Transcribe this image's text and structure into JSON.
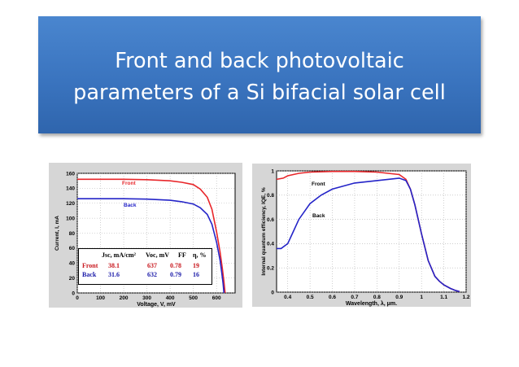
{
  "slide": {
    "title_line1": "Front and back photovoltaic",
    "title_line2": "parameters of a Si bifacial solar cell"
  },
  "colors": {
    "front": "#e8262a",
    "back": "#2424c8",
    "title_bg": "#3a74bf"
  },
  "chart_data": [
    {
      "type": "line",
      "title": "",
      "xlabel": "Voltage, V, mV",
      "ylabel": "Current, I, mA",
      "xlim": [
        0,
        680
      ],
      "ylim": [
        0,
        160
      ],
      "x_ticks": [
        0,
        100,
        200,
        300,
        400,
        500,
        600
      ],
      "y_ticks": [
        0,
        20,
        40,
        60,
        80,
        100,
        120,
        140,
        160
      ],
      "grid": true,
      "series": [
        {
          "name": "Front",
          "color": "#e8262a",
          "x": [
            0,
            100,
            200,
            300,
            400,
            450,
            500,
            530,
            560,
            580,
            600,
            615,
            625,
            632,
            637
          ],
          "y": [
            152,
            152,
            152,
            151.5,
            150,
            148,
            145,
            139,
            128,
            112,
            82,
            55,
            33,
            15,
            0
          ]
        },
        {
          "name": "Back",
          "color": "#2424c8",
          "x": [
            0,
            100,
            200,
            300,
            400,
            450,
            500,
            530,
            560,
            580,
            600,
            615,
            622,
            628,
            632
          ],
          "y": [
            126,
            126,
            126,
            125.5,
            124,
            122,
            119,
            114,
            105,
            92,
            68,
            44,
            28,
            13,
            0
          ]
        }
      ],
      "table": {
        "headers": [
          "Jsc, mA/cm²",
          "Voc, mV",
          "FF",
          "η, %"
        ],
        "rows": [
          {
            "label": "Front",
            "values": [
              "38.1",
              "637",
              "0.78",
              "19"
            ]
          },
          {
            "label": "Back",
            "values": [
              "31.6",
              "632",
              "0.79",
              "16"
            ]
          }
        ]
      }
    },
    {
      "type": "line",
      "title": "",
      "xlabel": "Wavelength, λ, μm.",
      "ylabel": "Internal quantum efficiency, IQE, %",
      "xlim": [
        0.35,
        1.2
      ],
      "ylim": [
        0,
        1
      ],
      "x_ticks": [
        0.4,
        0.5,
        0.6,
        0.7,
        0.8,
        0.9,
        1,
        1.1,
        1.2
      ],
      "y_ticks": [
        0,
        0.2,
        0.4,
        0.6,
        0.8,
        1
      ],
      "grid": true,
      "series": [
        {
          "name": "Front",
          "color": "#e8262a",
          "x": [
            0.35,
            0.38,
            0.4,
            0.45,
            0.5,
            0.6,
            0.7,
            0.8,
            0.9,
            0.93,
            0.95,
            0.97,
            1.0,
            1.03,
            1.06,
            1.08,
            1.1,
            1.13,
            1.15,
            1.17
          ],
          "y": [
            0.93,
            0.94,
            0.96,
            0.98,
            0.99,
            0.995,
            0.995,
            0.99,
            0.97,
            0.93,
            0.85,
            0.72,
            0.48,
            0.26,
            0.13,
            0.09,
            0.06,
            0.03,
            0.015,
            0.005
          ]
        },
        {
          "name": "Back",
          "color": "#2424c8",
          "x": [
            0.35,
            0.37,
            0.4,
            0.42,
            0.45,
            0.5,
            0.55,
            0.6,
            0.7,
            0.8,
            0.9,
            0.93,
            0.95,
            0.97,
            1.0,
            1.03,
            1.06,
            1.08,
            1.1,
            1.13,
            1.15,
            1.17
          ],
          "y": [
            0.36,
            0.36,
            0.4,
            0.48,
            0.6,
            0.73,
            0.8,
            0.85,
            0.9,
            0.92,
            0.94,
            0.92,
            0.85,
            0.72,
            0.48,
            0.26,
            0.13,
            0.09,
            0.06,
            0.03,
            0.015,
            0.005
          ]
        }
      ]
    }
  ]
}
